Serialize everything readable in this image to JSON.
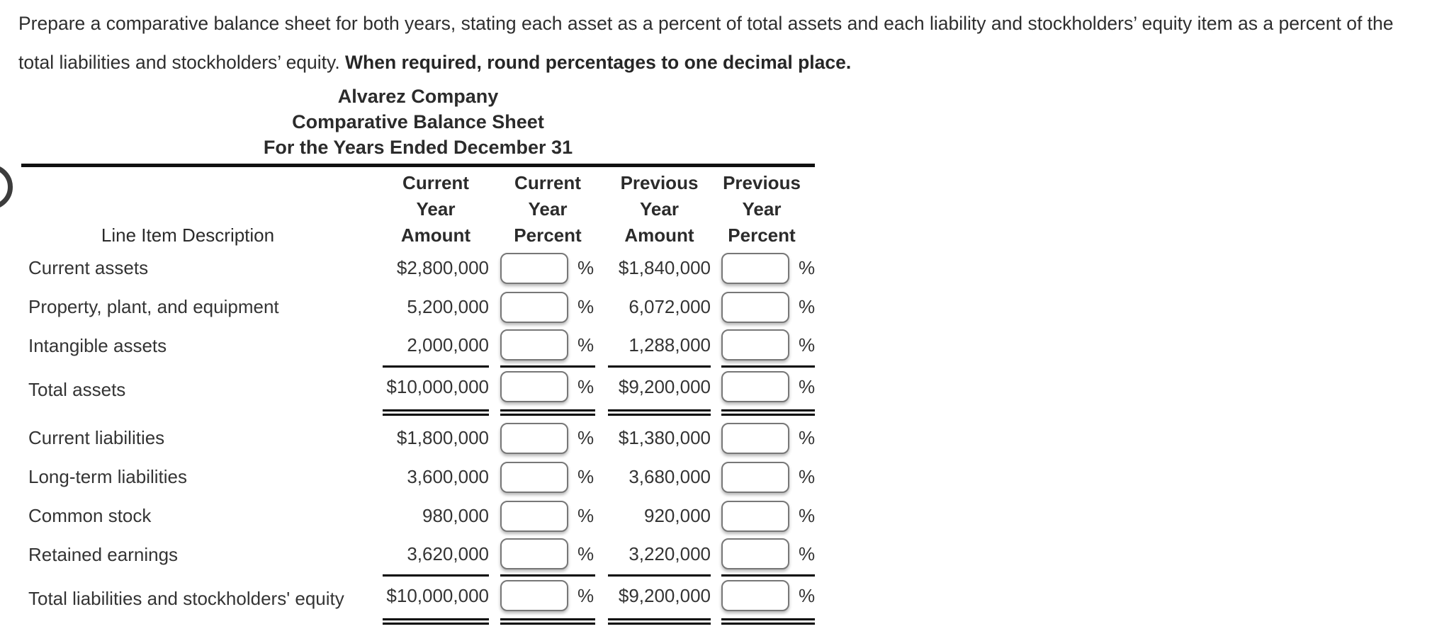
{
  "instructions": {
    "line1": "Prepare a comparative balance sheet for both years, stating each asset as a percent of total assets and each liability and stockholders’ equity item as a percent of the",
    "line2_normal": "total liabilities and stockholders’ equity. ",
    "line2_bold": "When required, round percentages to one decimal place."
  },
  "title": {
    "company": "Alvarez Company",
    "report": "Comparative Balance Sheet",
    "period": "For the Years Ended December 31"
  },
  "table": {
    "headers": {
      "line_item": "Line Item Description",
      "current_amount": [
        "Current",
        "Year",
        "Amount"
      ],
      "current_percent": [
        "Current",
        "Year",
        "Percent"
      ],
      "previous_amount": [
        "Previous",
        "Year",
        "Amount"
      ],
      "previous_percent": [
        "Previous",
        "Year",
        "Percent"
      ]
    },
    "percent_sign": "%",
    "percent_input_value": "",
    "rows": [
      {
        "label": "Current assets",
        "current_amount": "$2,800,000",
        "previous_amount": "$1,840,000"
      },
      {
        "label": "Property, plant, and equipment",
        "current_amount": "5,200,000",
        "previous_amount": "6,072,000"
      },
      {
        "label": "Intangible assets",
        "current_amount": "2,000,000",
        "previous_amount": "1,288,000"
      },
      {
        "label": "Total assets",
        "current_amount": "$10,000,000",
        "previous_amount": "$9,200,000"
      },
      {
        "label": "Current liabilities",
        "current_amount": "$1,800,000",
        "previous_amount": "$1,380,000"
      },
      {
        "label": "Long-term liabilities",
        "current_amount": "3,600,000",
        "previous_amount": "3,680,000"
      },
      {
        "label": "Common stock",
        "current_amount": "980,000",
        "previous_amount": "920,000"
      },
      {
        "label": "Retained earnings",
        "current_amount": "3,620,000",
        "previous_amount": "3,220,000"
      },
      {
        "label": "Total liabilities and stockholders' equity",
        "current_amount": "$10,000,000",
        "previous_amount": "$9,200,000"
      }
    ]
  },
  "colors": {
    "text": "#343434",
    "rule": "#101010",
    "underline": "#000000",
    "input_border": "#777777",
    "background": "#ffffff"
  }
}
